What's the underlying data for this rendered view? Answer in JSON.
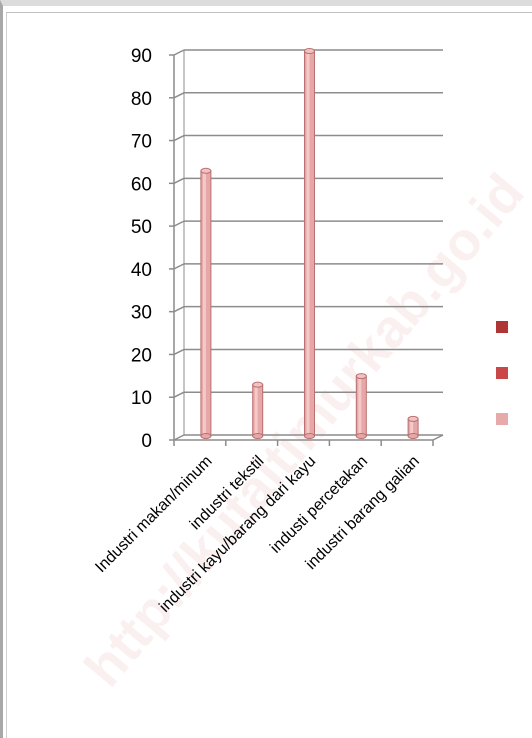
{
  "watermark": "http://kutaitimurkab.go.id",
  "colors": {
    "bar_fill": "#e8a7a7",
    "bar_stroke": "#b87070",
    "gridline": "#8c8c8c",
    "legend": [
      "#b03535",
      "#c84747",
      "#e6aaaa"
    ]
  },
  "chart_data": {
    "type": "bar",
    "style": "3d-cylinder",
    "categories": [
      "Industri makan/minum",
      "industri tekstil",
      "industri kayu/barang dari kayu",
      "industi percetakan",
      "industri barang galian"
    ],
    "series": [
      {
        "values": [
          62,
          12,
          90,
          14,
          4
        ]
      },
      {
        "values": [
          0,
          0,
          0,
          0,
          0
        ]
      },
      {
        "values": [
          0,
          0,
          0,
          0,
          0
        ]
      }
    ],
    "ylim": [
      0,
      90
    ],
    "yticks": [
      0,
      10,
      20,
      30,
      40,
      50,
      60,
      70,
      80,
      90
    ],
    "grid": true,
    "legend_position": "right",
    "title": "",
    "xlabel": "",
    "ylabel": ""
  }
}
